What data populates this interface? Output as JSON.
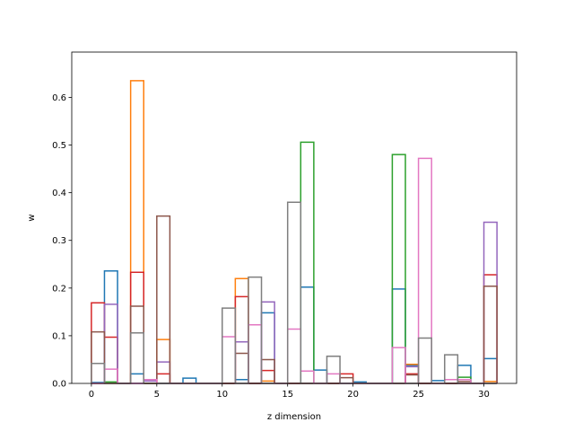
{
  "chart_data": {
    "type": "bar",
    "style": "step histograms, one outline per dimension of w",
    "xlabel": "z dimension",
    "ylabel": "w",
    "xlim": [
      -1.5,
      32.5
    ],
    "ylim": [
      0,
      0.695
    ],
    "x_ticks": [
      0,
      5,
      10,
      15,
      20,
      25,
      30
    ],
    "y_ticks": [
      0.0,
      0.1,
      0.2,
      0.3,
      0.4,
      0.5,
      0.6
    ],
    "bin_width": 1,
    "grid": false,
    "legend": "none",
    "colors": [
      "#1f77b4",
      "#ff7f0e",
      "#2ca02c",
      "#d62728",
      "#9467bd",
      "#8c564b",
      "#e377c2",
      "#7f7f7f"
    ],
    "series": [
      {
        "values": [
          0.002,
          0.236,
          0.0,
          0.02,
          0.0,
          0.0,
          0.0,
          0.011,
          0.0,
          0.0,
          0.0,
          0.008,
          0.0,
          0.148,
          0.0,
          0.0,
          0.202,
          0.028,
          0.0,
          0.0,
          0.003,
          0.0,
          0.0,
          0.198,
          0.038,
          0.0,
          0.006,
          0.0,
          0.038,
          0.0,
          0.052
        ]
      },
      {
        "values": [
          0.0,
          0.0,
          0.0,
          0.635,
          0.0,
          0.092,
          0.0,
          0.0,
          0.0,
          0.0,
          0.0,
          0.22,
          0.0,
          0.005,
          0.0,
          0.0,
          0.0,
          0.0,
          0.0,
          0.0,
          0.0,
          0.0,
          0.0,
          0.0,
          0.04,
          0.0,
          0.0,
          0.0,
          0.0,
          0.0,
          0.004
        ]
      },
      {
        "values": [
          0.0,
          0.003,
          0.0,
          0.0,
          0.0,
          0.0,
          0.0,
          0.0,
          0.0,
          0.0,
          0.0,
          0.0,
          0.0,
          0.0,
          0.0,
          0.0,
          0.506,
          0.0,
          0.0,
          0.0,
          0.0,
          0.0,
          0.0,
          0.48,
          0.0,
          0.0,
          0.0,
          0.0,
          0.013,
          0.0,
          0.0
        ]
      },
      {
        "values": [
          0.169,
          0.097,
          0.0,
          0.233,
          0.0,
          0.02,
          0.0,
          0.0,
          0.0,
          0.0,
          0.0,
          0.182,
          0.0,
          0.027,
          0.0,
          0.0,
          0.0,
          0.0,
          0.0,
          0.02,
          0.0,
          0.0,
          0.0,
          0.0,
          0.02,
          0.0,
          0.0,
          0.0,
          0.0,
          0.0,
          0.228
        ]
      },
      {
        "values": [
          0.0,
          0.166,
          0.0,
          0.0,
          0.005,
          0.045,
          0.0,
          0.0,
          0.0,
          0.0,
          0.0,
          0.087,
          0.0,
          0.171,
          0.0,
          0.0,
          0.0,
          0.0,
          0.0,
          0.0,
          0.0,
          0.0,
          0.0,
          0.0,
          0.035,
          0.0,
          0.0,
          0.0,
          0.0,
          0.0,
          0.338
        ]
      },
      {
        "values": [
          0.108,
          0.0,
          0.0,
          0.162,
          0.0,
          0.351,
          0.0,
          0.0,
          0.0,
          0.0,
          0.0,
          0.063,
          0.0,
          0.05,
          0.0,
          0.0,
          0.0,
          0.0,
          0.0,
          0.012,
          0.0,
          0.0,
          0.0,
          0.0,
          0.018,
          0.0,
          0.0,
          0.0,
          0.004,
          0.0,
          0.204
        ]
      },
      {
        "values": [
          0.0,
          0.03,
          0.0,
          0.0,
          0.008,
          0.0,
          0.0,
          0.0,
          0.0,
          0.0,
          0.098,
          0.0,
          0.123,
          0.0,
          0.0,
          0.114,
          0.026,
          0.0,
          0.02,
          0.0,
          0.0,
          0.0,
          0.0,
          0.075,
          0.0,
          0.472,
          0.0,
          0.008,
          0.008,
          0.0,
          0.0
        ]
      },
      {
        "values": [
          0.042,
          0.0,
          0.0,
          0.106,
          0.0,
          0.0,
          0.0,
          0.0,
          0.0,
          0.0,
          0.158,
          0.0,
          0.223,
          0.0,
          0.0,
          0.38,
          0.0,
          0.0,
          0.057,
          0.0,
          0.0,
          0.0,
          0.0,
          0.0,
          0.0,
          0.095,
          0.0,
          0.06,
          0.0,
          0.0,
          0.0
        ]
      }
    ]
  }
}
